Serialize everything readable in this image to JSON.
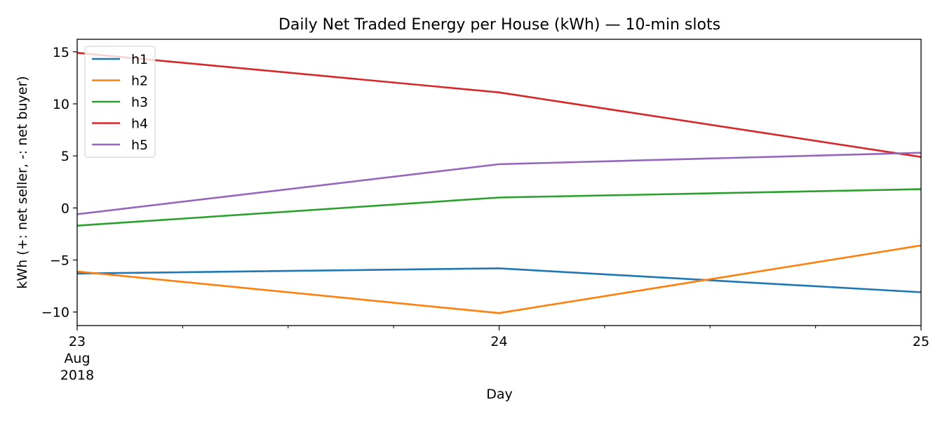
{
  "chart_data": {
    "type": "line",
    "title": "Daily Net Traded Energy per House (kWh) — 10-min slots",
    "xlabel": "Day",
    "ylabel": "kWh (+: net seller, -: net buyer)",
    "x": [
      "2018-08-23",
      "2018-08-24",
      "2018-08-25"
    ],
    "x_tick_labels": [
      {
        "day": "23",
        "month": "Aug",
        "year": "2018"
      },
      {
        "day": "24",
        "month": "",
        "year": ""
      },
      {
        "day": "25",
        "month": "",
        "year": ""
      }
    ],
    "xlim": [
      "2018-08-23",
      "2018-08-25"
    ],
    "ylim": [
      -11.3,
      16.2
    ],
    "yticks": [
      -10,
      -5,
      0,
      5,
      10,
      15
    ],
    "legend_position": "top-left",
    "grid": false,
    "series": [
      {
        "name": "h1",
        "color": "#1f77b4",
        "values": [
          -6.3,
          -5.8,
          -8.1
        ]
      },
      {
        "name": "h2",
        "color": "#ff7f0e",
        "values": [
          -6.1,
          -10.1,
          -3.6
        ]
      },
      {
        "name": "h3",
        "color": "#2ca02c",
        "values": [
          -1.7,
          1.0,
          1.8
        ]
      },
      {
        "name": "h4",
        "color": "#d62728",
        "values": [
          14.9,
          11.1,
          4.9
        ]
      },
      {
        "name": "h5",
        "color": "#9467bd",
        "values": [
          -0.6,
          4.2,
          5.3
        ]
      }
    ]
  }
}
